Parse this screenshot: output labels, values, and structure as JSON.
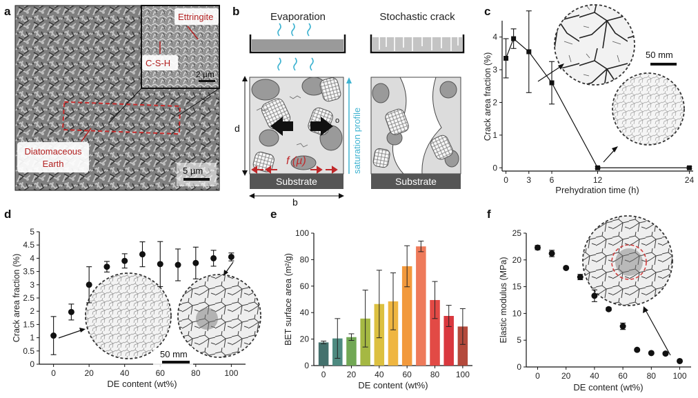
{
  "panels": {
    "a": {
      "letter": "a",
      "labels": {
        "ettringite": "Ettringite",
        "csh": "C-S-H",
        "inset_scale": "2 µm",
        "de_line1": "Diatomaceous",
        "de_line2": "Earth",
        "main_scale": "5 µm"
      }
    },
    "b": {
      "letter": "b",
      "labels": {
        "evaporation": "Evaporation",
        "stochastic": "Stochastic crack",
        "d": "d",
        "b": "b",
        "f_mu": "f (µ)",
        "saturation": "saturation profile",
        "substrate": "Substrate",
        "o": "o"
      }
    },
    "c": {
      "letter": "c",
      "chart_data": {
        "type": "line",
        "xlabel": "Prehydration time (h)",
        "ylabel": "Crack area fraction (%)",
        "xlim": [
          -0.5,
          24.5
        ],
        "ylim": [
          -0.1,
          4.5
        ],
        "xticks": [
          0,
          3,
          6,
          12,
          24
        ],
        "yticks": [
          0,
          1,
          2,
          3,
          4
        ],
        "points": [
          {
            "x": 0,
            "y": 3.35,
            "err": 0.6
          },
          {
            "x": 1,
            "y": 3.95,
            "err": 0.3
          },
          {
            "x": 3,
            "y": 3.55,
            "err": 1.25
          },
          {
            "x": 6,
            "y": 2.6,
            "err": 0.65
          },
          {
            "x": 12,
            "y": 0.0,
            "err": 0.03
          },
          {
            "x": 24,
            "y": 0.0,
            "err": 0.03
          }
        ],
        "scale_label": "50 mm"
      }
    },
    "d": {
      "letter": "d",
      "chart_data": {
        "type": "scatter",
        "xlabel": "DE content (wt%)",
        "ylabel": "Crack area fraction (%)",
        "xlim": [
          -8,
          108
        ],
        "ylim": [
          0,
          5
        ],
        "xticks": [
          0,
          20,
          40,
          60,
          80,
          100
        ],
        "yticks": [
          0,
          0.5,
          1,
          1.5,
          2,
          2.5,
          3,
          3.5,
          4,
          4.5,
          5
        ],
        "points": [
          {
            "x": 0,
            "y": 1.08,
            "err": 0.72
          },
          {
            "x": 10,
            "y": 1.97,
            "err": 0.3
          },
          {
            "x": 20,
            "y": 3.0,
            "err": 0.68
          },
          {
            "x": 30,
            "y": 3.68,
            "err": 0.2
          },
          {
            "x": 40,
            "y": 3.9,
            "err": 0.27
          },
          {
            "x": 50,
            "y": 4.15,
            "err": 0.47
          },
          {
            "x": 60,
            "y": 3.78,
            "err": 0.85
          },
          {
            "x": 70,
            "y": 3.75,
            "err": 0.6
          },
          {
            "x": 80,
            "y": 3.82,
            "err": 0.6
          },
          {
            "x": 90,
            "y": 4.0,
            "err": 0.3
          },
          {
            "x": 100,
            "y": 4.05,
            "err": 0.15
          }
        ],
        "scale_label": "50 mm"
      }
    },
    "e": {
      "letter": "e",
      "chart_data": {
        "type": "bar",
        "xlabel": "DE content (wt%)",
        "ylabel": "BET surface area (m²/g)",
        "xlim": [
          -7,
          107
        ],
        "ylim": [
          0,
          100
        ],
        "xticks": [
          0,
          20,
          40,
          60,
          80,
          100
        ],
        "yticks": [
          0,
          20,
          40,
          60,
          80,
          100
        ],
        "x": [
          0,
          10,
          20,
          30,
          40,
          50,
          60,
          70,
          80,
          90,
          100
        ],
        "values": [
          17.5,
          20.5,
          21.5,
          35.5,
          46.5,
          48.5,
          75.0,
          90.0,
          49.5,
          37.5,
          29.5
        ],
        "errors": [
          1.0,
          15.0,
          2.5,
          21.5,
          25.5,
          21.5,
          15.5,
          4.0,
          14.0,
          8.0,
          13.5
        ],
        "colors": [
          "#44716d",
          "#4e8a80",
          "#72a855",
          "#a5b843",
          "#dcc040",
          "#efb641",
          "#f2993c",
          "#ee7a5a",
          "#e24a45",
          "#d9383e",
          "#b44a3c"
        ]
      }
    },
    "f": {
      "letter": "f",
      "chart_data": {
        "type": "scatter",
        "xlabel": "DE content (wt%)",
        "ylabel": "Elastic modulus (MPa)",
        "xlim": [
          -8,
          108
        ],
        "ylim": [
          0,
          25
        ],
        "xticks": [
          0,
          20,
          40,
          60,
          80,
          100
        ],
        "yticks": [
          0,
          5,
          10,
          15,
          20,
          25
        ],
        "points": [
          {
            "x": 0,
            "y": 22.3,
            "err": 0.4
          },
          {
            "x": 10,
            "y": 21.2,
            "err": 0.6
          },
          {
            "x": 20,
            "y": 18.5,
            "err": 0.2
          },
          {
            "x": 30,
            "y": 16.8,
            "err": 0.5
          },
          {
            "x": 40,
            "y": 13.3,
            "err": 1.1
          },
          {
            "x": 50,
            "y": 10.8,
            "err": 0.3
          },
          {
            "x": 60,
            "y": 7.6,
            "err": 0.6
          },
          {
            "x": 70,
            "y": 3.2,
            "err": 0.2
          },
          {
            "x": 80,
            "y": 2.6,
            "err": 0.2
          },
          {
            "x": 90,
            "y": 2.5,
            "err": 0.2
          },
          {
            "x": 100,
            "y": 1.1,
            "err": 0.2
          }
        ]
      }
    }
  }
}
